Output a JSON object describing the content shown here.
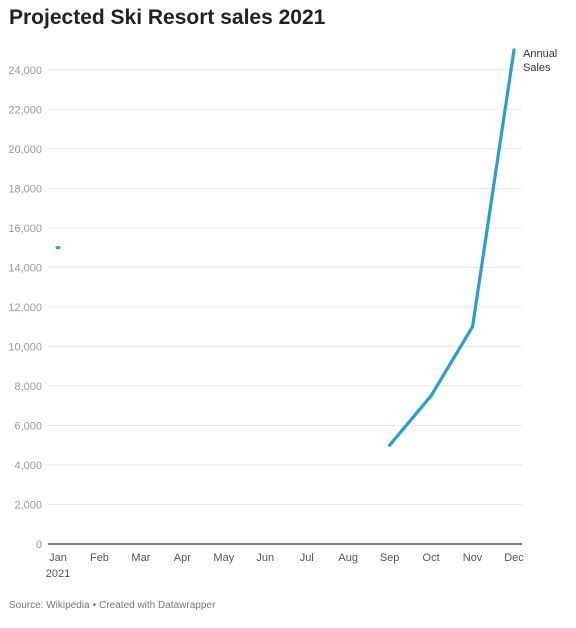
{
  "chart_data": {
    "type": "line",
    "title": "Projected Ski Resort sales 2021",
    "categories": [
      "Jan",
      "Feb",
      "Mar",
      "Apr",
      "May",
      "Jun",
      "Jul",
      "Aug",
      "Sep",
      "Oct",
      "Nov",
      "Dec"
    ],
    "year_label": "2021",
    "series": [
      {
        "name": "Annual Sales",
        "name_lines": [
          "Annual",
          "Sales"
        ],
        "color": "#2a9fc9",
        "values": [
          15000,
          null,
          null,
          null,
          null,
          null,
          null,
          null,
          5000,
          7500,
          11000,
          25000
        ]
      }
    ],
    "y_ticks": [
      "0",
      "2,000",
      "4,000",
      "6,000",
      "8,000",
      "10,000",
      "12,000",
      "14,000",
      "16,000",
      "18,000",
      "20,000",
      "22,000",
      "24,000"
    ],
    "ylim": [
      0,
      25000
    ],
    "grid": true
  },
  "footer": {
    "source": "Source: Wikipedia",
    "separator": "•",
    "credit": "Created with Datawrapper"
  }
}
